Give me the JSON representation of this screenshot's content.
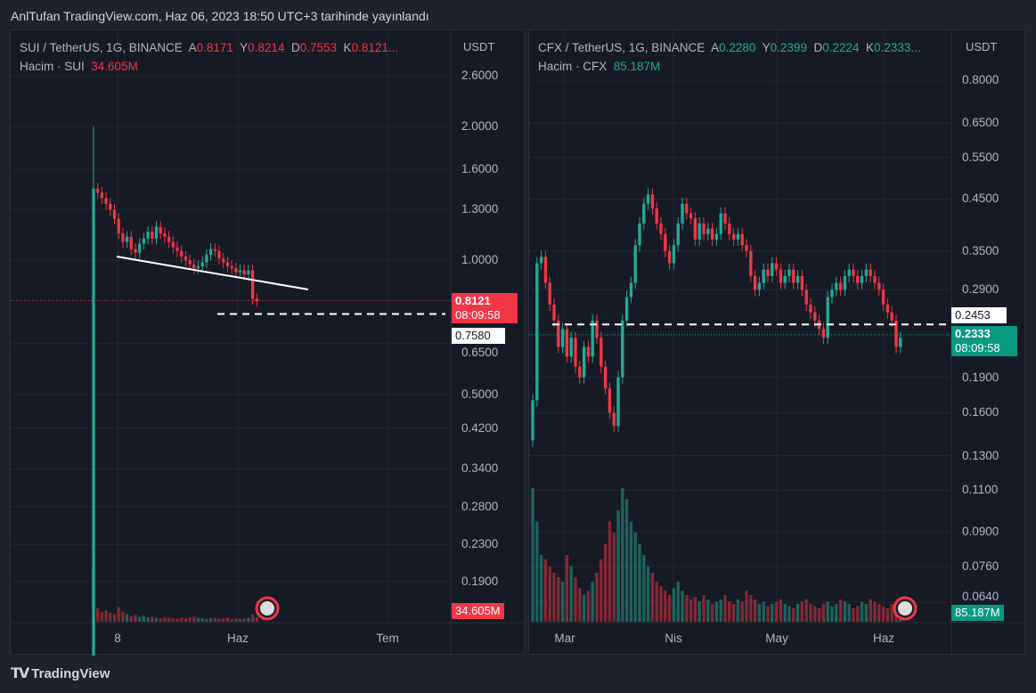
{
  "published": "AnlTufan TradingView.com, Haz 06, 2023 18:50 UTC+3 tarihinde yayınlandı",
  "footer_brand": "TradingView",
  "colors": {
    "up": "#22ab94",
    "down": "#f23645",
    "bg": "#161a25"
  },
  "chart_data": [
    {
      "type": "candlestick",
      "title": "SUI / TetherUS, 1G, BINANCE",
      "ohlc": {
        "o_label": "A",
        "o": "0.8171",
        "h_label": "Y",
        "h": "0.8214",
        "l_label": "D",
        "l": "0.7553",
        "c_label": "K",
        "c": "0.8121..."
      },
      "volume_label": "Hacim · SUI",
      "volume": "34.605M",
      "currency": "USDT",
      "yticks": [
        "2.6000",
        "2.0000",
        "1.6000",
        "1.3000",
        "1.0000",
        "0.6500",
        "0.5000",
        "0.4200",
        "0.3400",
        "0.2800",
        "0.2300",
        "0.1900"
      ],
      "ytick_values": [
        2.6,
        2.0,
        1.6,
        1.3,
        1.0,
        0.65,
        0.5,
        0.42,
        0.34,
        0.28,
        0.23,
        0.19
      ],
      "ylim": [
        0.16,
        2.9
      ],
      "scale": "log",
      "xticks": [
        "8",
        "Haz",
        "Tem"
      ],
      "last_price": "0.8121",
      "countdown": "08:09:58",
      "level_line": "0.7580",
      "closes": [
        1.45,
        1.42,
        1.38,
        1.34,
        1.3,
        1.24,
        1.15,
        1.1,
        1.13,
        1.06,
        1.04,
        1.09,
        1.12,
        1.16,
        1.12,
        1.19,
        1.15,
        1.13,
        1.1,
        1.07,
        1.05,
        1.02,
        1.0,
        0.98,
        0.96,
        0.97,
        0.99,
        1.03,
        1.06,
        1.05,
        1.01,
        0.99,
        0.97,
        0.96,
        0.94,
        0.95,
        0.93,
        0.95,
        0.82,
        0.81
      ],
      "volumes": [
        100,
        25,
        18,
        20,
        16,
        14,
        26,
        18,
        14,
        10,
        12,
        9,
        11,
        8,
        9,
        7,
        6,
        8,
        7,
        6,
        5,
        7,
        6,
        8,
        9,
        7,
        6,
        5,
        6,
        7,
        5,
        6,
        7,
        5,
        6,
        5,
        6,
        7,
        13,
        8
      ]
    },
    {
      "type": "candlestick",
      "title": "CFX / TetherUS, 1G, BINANCE",
      "ohlc": {
        "o_label": "A",
        "o": "0.2280",
        "h_label": "Y",
        "h": "0.2399",
        "l_label": "D",
        "l": "0.2224",
        "c_label": "K",
        "c": "0.2333..."
      },
      "volume_label": "Hacim · CFX",
      "volume": "85.187M",
      "currency": "USDT",
      "yticks": [
        "0.8000",
        "0.6500",
        "0.5500",
        "0.4500",
        "0.3500",
        "0.2900",
        "0.1900",
        "0.1600",
        "0.1300",
        "0.1100",
        "0.0900",
        "0.0760",
        "0.0640"
      ],
      "ytick_values": [
        0.8,
        0.65,
        0.55,
        0.45,
        0.35,
        0.29,
        0.19,
        0.16,
        0.13,
        0.11,
        0.09,
        0.076,
        0.064
      ],
      "ylim": [
        0.06,
        0.85
      ],
      "scale": "log",
      "xticks": [
        "Mar",
        "Nis",
        "May",
        "Haz"
      ],
      "last_price": "0.2333",
      "countdown": "08:09:58",
      "level_line": "0.2453",
      "closes": [
        0.17,
        0.33,
        0.34,
        0.3,
        0.27,
        0.25,
        0.22,
        0.24,
        0.21,
        0.23,
        0.2,
        0.19,
        0.22,
        0.21,
        0.25,
        0.23,
        0.2,
        0.18,
        0.16,
        0.15,
        0.19,
        0.25,
        0.28,
        0.3,
        0.36,
        0.4,
        0.44,
        0.46,
        0.43,
        0.4,
        0.38,
        0.35,
        0.33,
        0.36,
        0.4,
        0.44,
        0.42,
        0.41,
        0.37,
        0.4,
        0.38,
        0.39,
        0.37,
        0.38,
        0.42,
        0.4,
        0.38,
        0.37,
        0.38,
        0.36,
        0.35,
        0.31,
        0.29,
        0.3,
        0.32,
        0.31,
        0.33,
        0.32,
        0.3,
        0.31,
        0.32,
        0.3,
        0.31,
        0.29,
        0.27,
        0.26,
        0.25,
        0.24,
        0.23,
        0.28,
        0.29,
        0.3,
        0.29,
        0.31,
        0.32,
        0.31,
        0.3,
        0.31,
        0.32,
        0.31,
        0.3,
        0.29,
        0.27,
        0.26,
        0.25,
        0.22,
        0.23
      ],
      "volumes": [
        60,
        45,
        30,
        28,
        25,
        22,
        20,
        18,
        30,
        25,
        20,
        15,
        12,
        14,
        18,
        22,
        28,
        35,
        45,
        40,
        50,
        60,
        55,
        45,
        40,
        35,
        30,
        25,
        22,
        18,
        16,
        14,
        12,
        15,
        18,
        14,
        12,
        10,
        11,
        9,
        12,
        10,
        8,
        9,
        10,
        12,
        9,
        8,
        10,
        9,
        14,
        12,
        10,
        8,
        9,
        7,
        8,
        9,
        10,
        8,
        7,
        6,
        8,
        9,
        10,
        8,
        7,
        6,
        8,
        9,
        7,
        8,
        10,
        9,
        8,
        6,
        7,
        9,
        8,
        10,
        9,
        8,
        7,
        6,
        8,
        7,
        6
      ]
    }
  ]
}
